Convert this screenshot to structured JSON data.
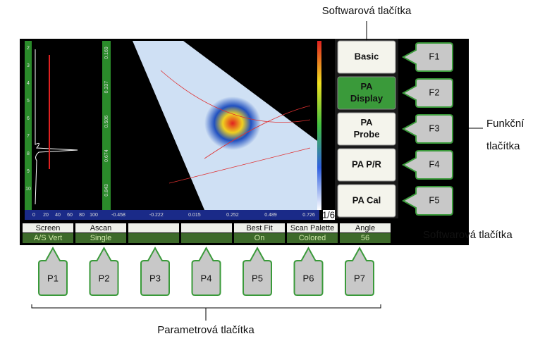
{
  "callouts": {
    "softkeys_top": "Softwarová tlačítka",
    "function_keys": [
      "Funkční",
      "tlačítka"
    ],
    "softkeys_right": "Softwarová tlačítka",
    "parameter_keys": "Parametrová tlačítka"
  },
  "screen": {
    "ascan_x_ticks": [
      0,
      20,
      40,
      60,
      80,
      100
    ],
    "ascan_depth_ticks": [
      2,
      3,
      4,
      5,
      6,
      7,
      8,
      9,
      10
    ],
    "sectorial_depth_ticks": [
      0.169,
      0.337,
      0.506,
      0.674,
      0.843
    ],
    "sectorial_x_ticks": [
      -0.458,
      -0.222,
      0.015,
      0.252,
      0.489,
      0.726
    ],
    "page": "1/6"
  },
  "softkeys": [
    {
      "label": [
        "Basic"
      ],
      "key": "F1"
    },
    {
      "label": [
        "PA",
        "Display"
      ],
      "key": "F2"
    },
    {
      "label": [
        "PA",
        "Probe"
      ],
      "key": "F3"
    },
    {
      "label": [
        "PA P/R"
      ],
      "key": "F4"
    },
    {
      "label": [
        "PA Cal"
      ],
      "key": "F5"
    }
  ],
  "parameters": [
    {
      "name": "Screen",
      "value": "A/S Vert",
      "key": "P1"
    },
    {
      "name": "Ascan",
      "value": "Single",
      "key": "P2"
    },
    {
      "name": null,
      "value": null,
      "key": "P3"
    },
    {
      "name": null,
      "value": null,
      "key": "P4"
    },
    {
      "name": "Best Fit",
      "value": "On",
      "key": "P5"
    },
    {
      "name": "Scan Palette",
      "value": "Colored",
      "key": "P6"
    },
    {
      "name": "Angle",
      "value": "56",
      "key": "P7"
    }
  ]
}
